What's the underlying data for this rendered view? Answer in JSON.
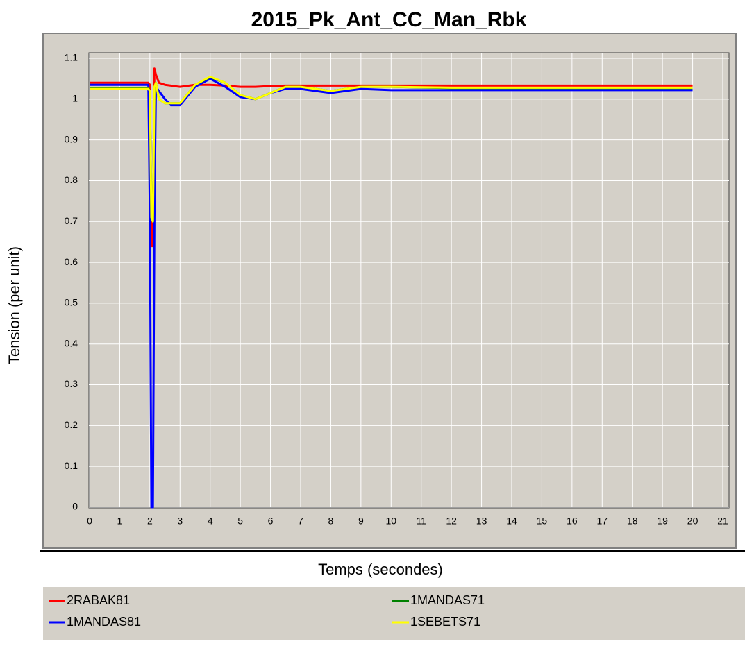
{
  "chart_data": {
    "type": "line",
    "title": "2015_Pk_Ant_CC_Man_Rbk",
    "x_label": "Temps (secondes)",
    "y_label": "Tension (per unit)",
    "x": [
      0,
      1.95,
      2.0,
      2.05,
      2.1,
      2.15,
      2.2,
      2.3,
      2.5,
      2.7,
      3,
      3.5,
      4,
      4.5,
      5,
      5.5,
      6,
      6.5,
      7,
      8,
      9,
      10,
      12,
      14,
      16,
      18,
      20
    ],
    "series": [
      {
        "name": "2RABAK81",
        "color": "#ff0000",
        "values": [
          1.04,
          1.04,
          1.035,
          0.64,
          0.64,
          1.075,
          1.06,
          1.04,
          1.035,
          1.033,
          1.03,
          1.035,
          1.035,
          1.033,
          1.03,
          1.03,
          1.032,
          1.033,
          1.033,
          1.033,
          1.033,
          1.033,
          1.033,
          1.033,
          1.033,
          1.033,
          1.033
        ]
      },
      {
        "name": "1MANDAS81",
        "color": "#0000ff",
        "values": [
          1.035,
          1.035,
          0.71,
          0,
          0,
          0.7,
          1.03,
          1.02,
          1.0,
          0.985,
          0.985,
          1.03,
          1.05,
          1.03,
          1.005,
          1.0,
          1.015,
          1.025,
          1.025,
          1.015,
          1.025,
          1.022,
          1.022,
          1.022,
          1.022,
          1.022,
          1.022
        ]
      },
      {
        "name": "1MANDAS71",
        "color": "#008000",
        "values": [
          1.027,
          1.027,
          1.02,
          0.71,
          0.7,
          1.03,
          1.04,
          1.0,
          0.99,
          0.99,
          0.99,
          1.035,
          1.054,
          1.04,
          1.01,
          1.0,
          1.015,
          1.03,
          1.03,
          1.02,
          1.03,
          1.03,
          1.027,
          1.027,
          1.027,
          1.027,
          1.027
        ]
      },
      {
        "name": "1SEBETS71",
        "color": "#ffff00",
        "values": [
          1.025,
          1.025,
          1.02,
          0.71,
          0.7,
          1.03,
          1.04,
          1.0,
          0.99,
          0.99,
          0.99,
          1.035,
          1.055,
          1.04,
          1.01,
          1.0,
          1.015,
          1.03,
          1.03,
          1.02,
          1.03,
          1.03,
          1.028,
          1.028,
          1.028,
          1.028,
          1.028
        ]
      }
    ],
    "xlim": [
      0,
      21
    ],
    "ylim": [
      0,
      1.1
    ],
    "xticks": [
      0,
      1,
      2,
      3,
      4,
      5,
      6,
      7,
      8,
      9,
      10,
      11,
      12,
      13,
      14,
      15,
      16,
      17,
      18,
      19,
      20,
      21
    ],
    "yticks": [
      0,
      0.1,
      0.2,
      0.3,
      0.4,
      0.5,
      0.6,
      0.7,
      0.8,
      0.9,
      1,
      1.1
    ],
    "grid": true
  }
}
